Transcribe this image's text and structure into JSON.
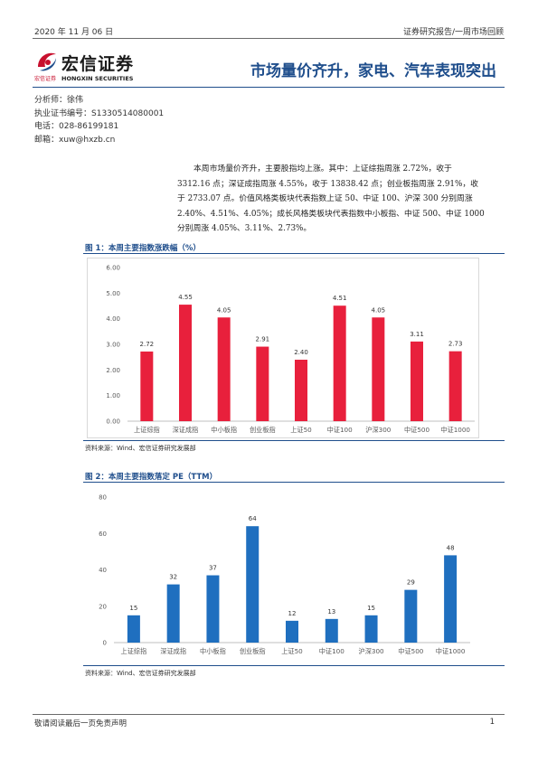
{
  "header": {
    "date": "2020 年 11 月 06 日",
    "report_type": "证券研究报告/一周市场回顾"
  },
  "logo": {
    "name_cn": "宏信证券",
    "name_en": "HONGXIN SECURITIES",
    "small_cn": "宏信证券",
    "brand_color": "#c8102e",
    "icon": "hongxin-logo-icon"
  },
  "title": "市场量价齐升，家电、汽车表现突出",
  "analyst": {
    "name_line": "分析师：徐伟",
    "cert_line": "执业证书编号：S1330514080001",
    "phone_line": "电话：028-86199181",
    "email_line": "邮箱：xuw@hxzb.cn"
  },
  "summary": {
    "line1": "本周市场量价齐升，主要股指均上涨。其中：上证综指周涨 2.72%，收于",
    "line2": "3312.16 点；深证成指周涨 4.55%，收于 13838.42 点；创业板指周涨 2.91%，收",
    "line3": "于 2733.07 点。价值风格类板块代表指数上证 50、中证 100、沪深 300 分别周涨",
    "line4": "2.40%、4.51%、4.05%；成长风格类板块代表指数中小板指、中证 500、中证 1000",
    "line5": "分别周涨 4.05%、3.11%、2.73%。"
  },
  "figure1": {
    "title": "图 1：本周主要指数涨跌幅（%）",
    "source": "资料来源：Wind、宏信证券研究发展部"
  },
  "figure2": {
    "title": "图 2：本周主要指数落定 PE（TTM）",
    "source": "资料来源：Wind、宏信证券研究发展部"
  },
  "chart_data": [
    {
      "type": "bar",
      "title": "本周主要指数涨跌幅（%）",
      "categories": [
        "上证综指",
        "深证成指",
        "中小板指",
        "创业板指",
        "上证50",
        "中证100",
        "沪深300",
        "中证500",
        "中证1000"
      ],
      "values": [
        2.72,
        4.55,
        4.05,
        2.91,
        2.4,
        4.51,
        4.05,
        3.11,
        2.73
      ],
      "value_labels": [
        "2.72",
        "4.55",
        "4.05",
        "2.91",
        "2.40",
        "4.51",
        "4.05",
        "3.11",
        "2.73"
      ],
      "ylim": [
        0,
        6
      ],
      "yticks": [
        "0.00",
        "1.00",
        "2.00",
        "3.00",
        "4.00",
        "5.00",
        "6.00"
      ],
      "ytick_values": [
        0,
        1,
        2,
        3,
        4,
        5,
        6
      ],
      "color": "#e8203c",
      "grid": false
    },
    {
      "type": "bar",
      "title": "本周主要指数落定 PE（TTM）",
      "categories": [
        "上证综指",
        "深证成指",
        "中小板指",
        "创业板指",
        "上证50",
        "中证100",
        "沪深300",
        "中证500",
        "中证1000"
      ],
      "values": [
        15,
        32,
        37,
        64,
        12,
        13,
        15,
        29,
        48
      ],
      "value_labels": [
        "15",
        "32",
        "37",
        "64",
        "12",
        "13",
        "15",
        "29",
        "48"
      ],
      "ylim": [
        0,
        80
      ],
      "yticks": [
        "0",
        "20",
        "40",
        "60",
        "80"
      ],
      "ytick_values": [
        0,
        20,
        40,
        60,
        80
      ],
      "color": "#1f6fbf",
      "grid": false
    }
  ],
  "footer": {
    "disclaimer": "敬请阅读最后一页免责声明",
    "page_number": "1"
  }
}
